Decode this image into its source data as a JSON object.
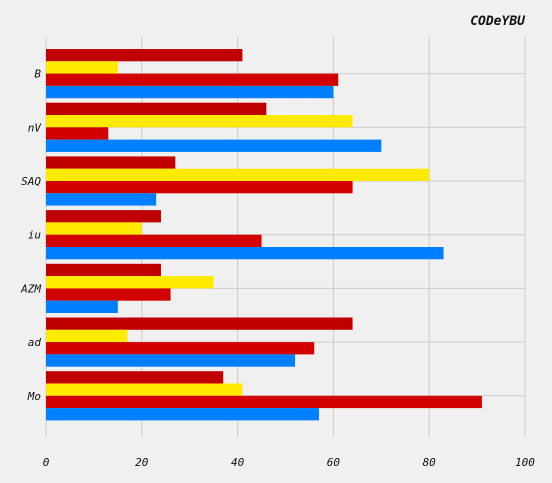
{
  "chart_data": {
    "type": "bar",
    "orientation": "horizontal",
    "title": "CODeYBU",
    "xlabel": "",
    "ylabel": "",
    "categories": [
      "B",
      "nV",
      "SAQ",
      "iu",
      "AZM",
      "ad",
      "Mo"
    ],
    "series": [
      {
        "color": "#c00000",
        "values": [
          41,
          46,
          27,
          24,
          24,
          64,
          37
        ]
      },
      {
        "color": "#ffea00",
        "values": [
          15,
          64,
          80,
          20,
          35,
          17,
          41
        ]
      },
      {
        "color": "#d20000",
        "values": [
          61,
          13,
          64,
          45,
          26,
          56,
          91
        ]
      },
      {
        "color": "#0080ff",
        "values": [
          60,
          70,
          23,
          83,
          15,
          52,
          57
        ]
      }
    ],
    "xlim": [
      0,
      100
    ],
    "xticks": [
      0,
      20,
      40,
      60,
      80,
      100
    ],
    "xtick_labels": [
      "0",
      "20",
      "40",
      "60",
      "80",
      "100"
    ],
    "grid": true,
    "legend": "none"
  }
}
